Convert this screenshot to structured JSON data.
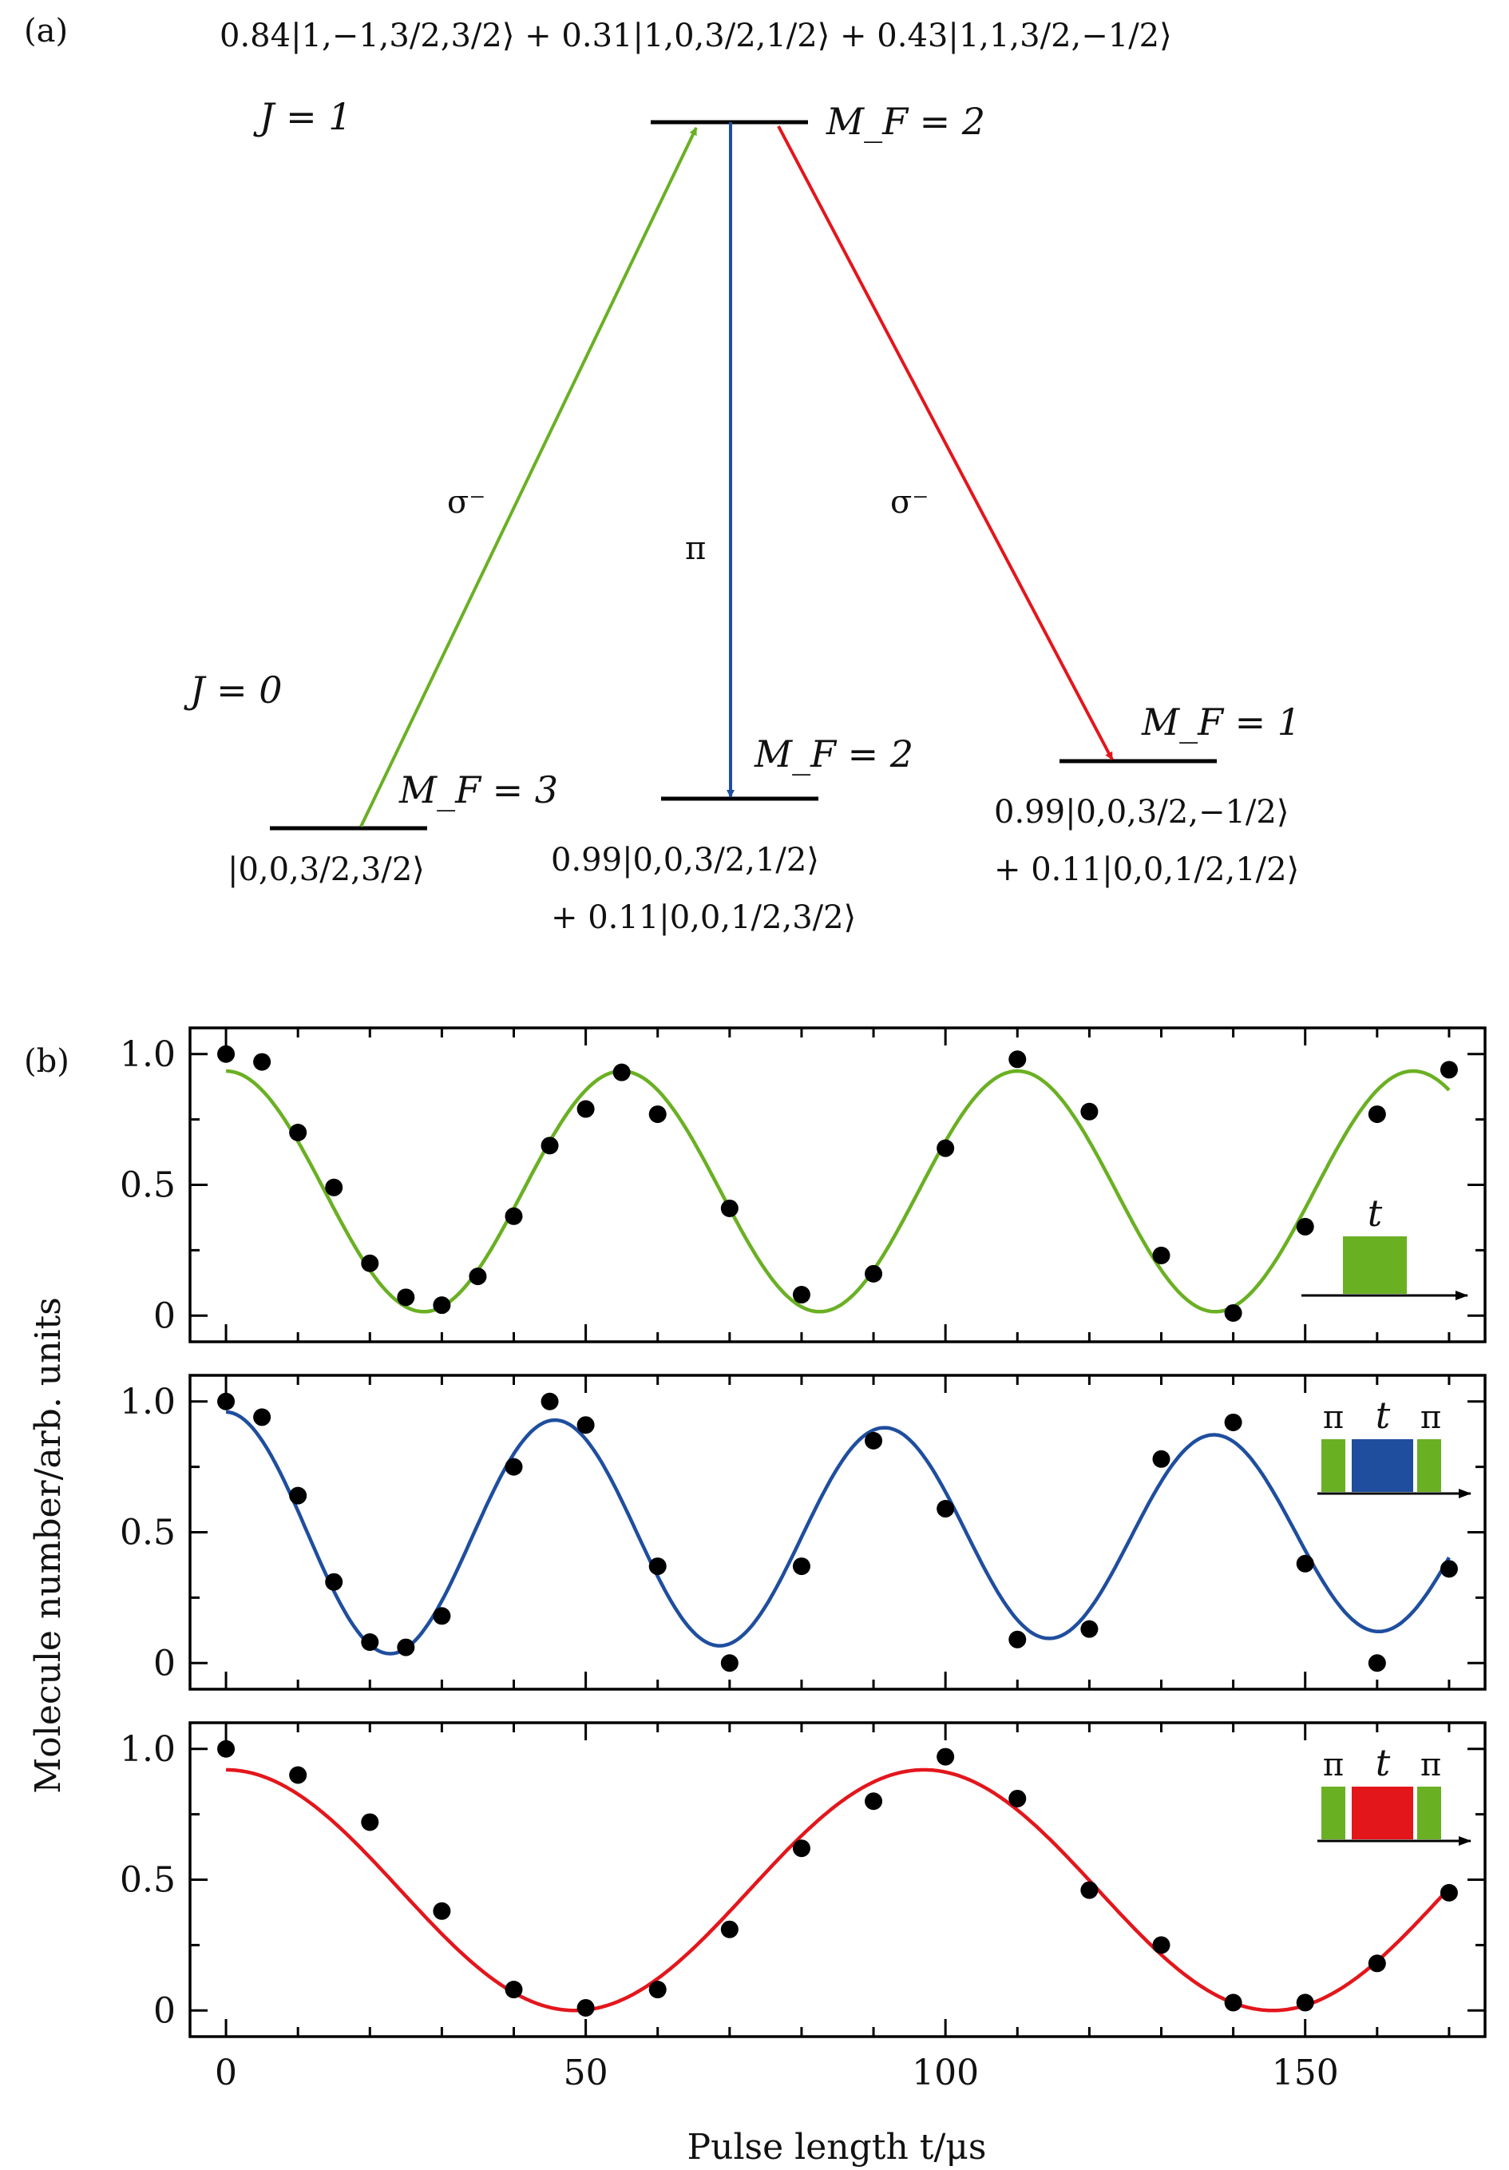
{
  "panel_a": {
    "label": "(a)",
    "top_state": "0.84|1,−1,3/2,3/2⟩ + 0.31|1,0,3/2,1/2⟩ + 0.43|1,1,3/2,−1/2⟩",
    "j1_label": "J = 1",
    "j0_label": "J = 0",
    "top_level_label": "M_F = 2",
    "levels": [
      {
        "mf_label": "M_F = 3",
        "state_lines": [
          "|0,0,3/2,3/2⟩"
        ]
      },
      {
        "mf_label": "M_F = 2",
        "state_lines": [
          "0.99|0,0,3/2,1/2⟩",
          "+ 0.11|0,0,1/2,3/2⟩"
        ]
      },
      {
        "mf_label": "M_F = 1",
        "state_lines": [
          "0.99|0,0,3/2,−1/2⟩",
          "+ 0.11|0,0,1/2,1/2⟩"
        ]
      }
    ],
    "transitions": [
      {
        "label": "σ⁻",
        "color": "#6ab023",
        "direction": "up"
      },
      {
        "label": "π",
        "color": "#1f4e9e",
        "direction": "down"
      },
      {
        "label": "σ⁻",
        "color": "#e3161c",
        "direction": "down"
      }
    ]
  },
  "panel_b": {
    "label": "(b)",
    "ylabel": "Molecule number/arb. units",
    "xlabel": "Pulse length t/μs"
  },
  "chart_data": [
    {
      "type": "scatter",
      "series": [
        {
          "name": "",
          "color": "#6ab023",
          "x": [
            0,
            5,
            10,
            15,
            20,
            25,
            30,
            35,
            40,
            45,
            50,
            55,
            60,
            70,
            80,
            90,
            100,
            110,
            120,
            130,
            140,
            150,
            160,
            170
          ],
          "y": [
            1.0,
            0.97,
            0.7,
            0.49,
            0.2,
            0.07,
            0.04,
            0.15,
            0.38,
            0.65,
            0.79,
            0.93,
            0.77,
            0.41,
            0.08,
            0.16,
            0.64,
            0.98,
            0.78,
            0.23,
            0.01,
            0.34,
            0.77,
            0.94
          ]
        }
      ],
      "fit": {
        "offset": 0.475,
        "amplitude": 0.46,
        "period": 55.0,
        "damping": 0.0
      },
      "xlim": [
        -5,
        175
      ],
      "ylim": [
        -0.1,
        1.1
      ],
      "xticks": [
        0,
        50,
        100,
        150
      ],
      "yticks": [
        0,
        0.5,
        1.0
      ],
      "yticklabels": [
        "0",
        "0.5",
        "1.0"
      ],
      "inset": {
        "t_label": "t",
        "bars": [
          {
            "color": "#6ab023"
          }
        ]
      }
    },
    {
      "type": "scatter",
      "series": [
        {
          "name": "",
          "color": "#1f4e9e",
          "x": [
            0,
            5,
            10,
            15,
            20,
            25,
            30,
            40,
            45,
            50,
            60,
            70,
            80,
            90,
            100,
            110,
            120,
            130,
            140,
            150,
            160,
            170
          ],
          "y": [
            1.0,
            0.94,
            0.64,
            0.31,
            0.08,
            0.06,
            0.18,
            0.75,
            1.0,
            0.91,
            0.37,
            0.0,
            0.37,
            0.85,
            0.59,
            0.09,
            0.13,
            0.78,
            0.92,
            0.38,
            0.0,
            0.36
          ]
        }
      ],
      "fit": {
        "offset": 0.49,
        "amplitude": 0.47,
        "period": 45.8,
        "damping": 0.0015
      },
      "xlim": [
        -5,
        175
      ],
      "ylim": [
        -0.1,
        1.1
      ],
      "xticks": [
        0,
        50,
        100,
        150
      ],
      "yticks": [
        0,
        0.5,
        1.0
      ],
      "yticklabels": [
        "0",
        "0.5",
        "1.0"
      ],
      "inset": {
        "t_label": "t",
        "pi_label": "π",
        "bars": [
          {
            "color": "#6ab023"
          },
          {
            "color": "#1f4e9e"
          },
          {
            "color": "#6ab023"
          }
        ]
      }
    },
    {
      "type": "scatter",
      "series": [
        {
          "name": "",
          "color": "#e3161c",
          "x": [
            0,
            10,
            20,
            30,
            40,
            50,
            60,
            70,
            80,
            90,
            100,
            110,
            120,
            130,
            140,
            150,
            160,
            170
          ],
          "y": [
            1.0,
            0.9,
            0.72,
            0.38,
            0.08,
            0.01,
            0.08,
            0.31,
            0.62,
            0.8,
            0.97,
            0.81,
            0.46,
            0.25,
            0.03,
            0.03,
            0.18,
            0.45
          ]
        }
      ],
      "fit": {
        "offset": 0.46,
        "amplitude": 0.46,
        "period": 97.0,
        "damping": 0.0
      },
      "xlim": [
        -5,
        175
      ],
      "ylim": [
        -0.1,
        1.1
      ],
      "xticks": [
        0,
        50,
        100,
        150
      ],
      "yticks": [
        0,
        0.5,
        1.0
      ],
      "yticklabels": [
        "0",
        "0.5",
        "1.0"
      ],
      "inset": {
        "t_label": "t",
        "pi_label": "π",
        "bars": [
          {
            "color": "#6ab023"
          },
          {
            "color": "#e3161c"
          },
          {
            "color": "#6ab023"
          }
        ]
      }
    }
  ]
}
